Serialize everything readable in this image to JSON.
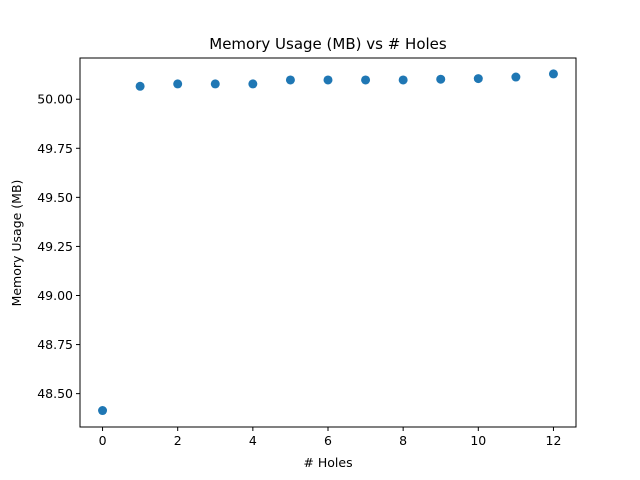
{
  "chart_data": {
    "type": "scatter",
    "title": "Memory Usage (MB) vs # Holes",
    "xlabel": "# Holes",
    "ylabel": "Memory Usage (MB)",
    "xlim": [
      -0.6,
      12.6
    ],
    "ylim": [
      48.33,
      50.21
    ],
    "xticks": [
      0,
      2,
      4,
      6,
      8,
      10,
      12
    ],
    "xtick_labels": [
      "0",
      "2",
      "4",
      "6",
      "8",
      "10",
      "12"
    ],
    "yticks": [
      48.5,
      48.75,
      49.0,
      49.25,
      49.5,
      49.75,
      50.0
    ],
    "ytick_labels": [
      "48.50",
      "48.75",
      "49.00",
      "49.25",
      "49.50",
      "49.75",
      "50.00"
    ],
    "grid": false,
    "legend": "none",
    "marker_color": "#1f77b4",
    "series": [
      {
        "x": [
          0,
          1,
          2,
          3,
          4,
          5,
          6,
          7,
          8,
          9,
          10,
          11,
          12
        ],
        "y": [
          48.414,
          50.066,
          50.078,
          50.078,
          50.078,
          50.098,
          50.098,
          50.098,
          50.098,
          50.102,
          50.105,
          50.113,
          50.129
        ]
      }
    ]
  }
}
